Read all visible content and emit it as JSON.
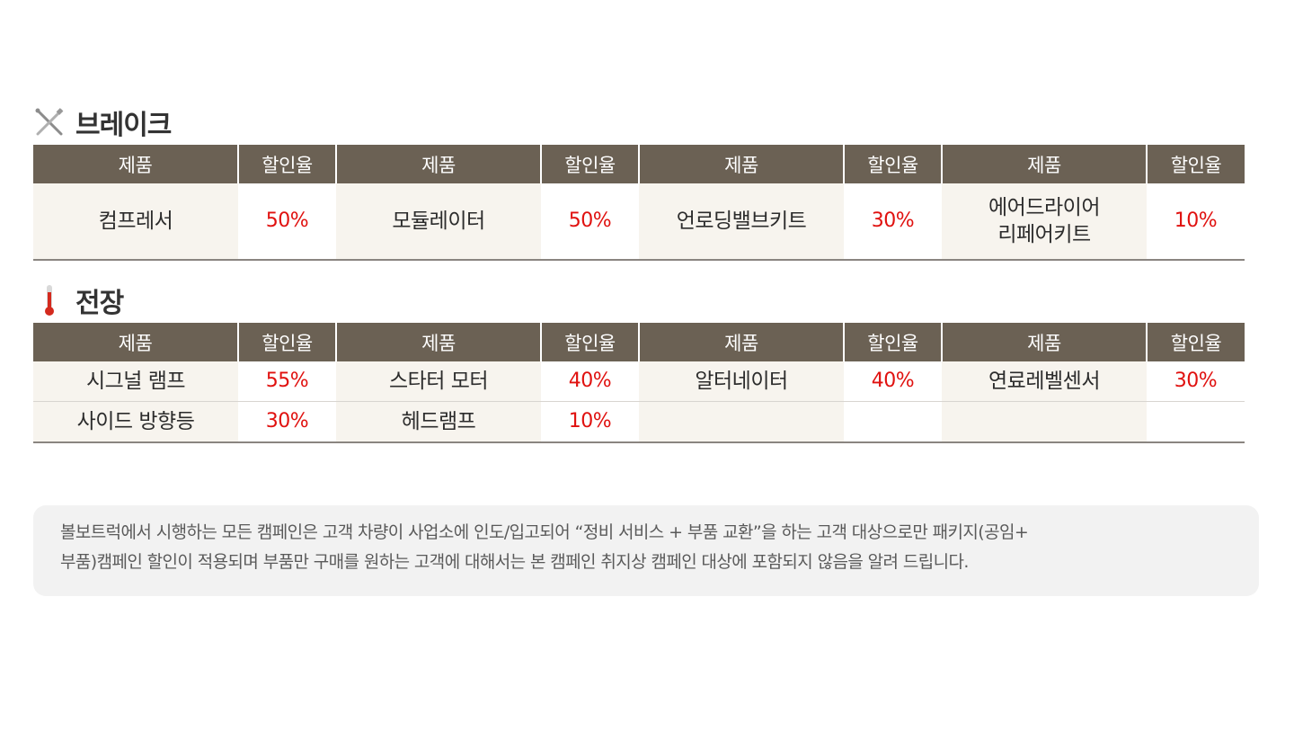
{
  "sections": [
    {
      "title": "브레이크",
      "icon": "wrench-screwdriver-icon",
      "headers": [
        "제품",
        "할인율",
        "제품",
        "할인율",
        "제품",
        "할인율",
        "제품",
        "할인율"
      ],
      "rows": [
        [
          {
            "product": "컴프레서",
            "rate": "50%"
          },
          {
            "product": "모듈레이터",
            "rate": "50%"
          },
          {
            "product": "언로딩밸브키트",
            "rate": "30%"
          },
          {
            "product": "에어드라이어\n리페어키트",
            "rate": "10%"
          }
        ]
      ]
    },
    {
      "title": "전장",
      "icon": "thermometer-icon",
      "headers": [
        "제품",
        "할인율",
        "제품",
        "할인율",
        "제품",
        "할인율",
        "제품",
        "할인율"
      ],
      "rows": [
        [
          {
            "product": "시그널 램프",
            "rate": "55%"
          },
          {
            "product": "스타터 모터",
            "rate": "40%"
          },
          {
            "product": "알터네이터",
            "rate": "40%"
          },
          {
            "product": "연료레벨센서",
            "rate": "30%"
          }
        ],
        [
          {
            "product": "사이드 방향등",
            "rate": "30%"
          },
          {
            "product": "헤드램프",
            "rate": "10%"
          },
          {
            "product": "",
            "rate": ""
          },
          {
            "product": "",
            "rate": ""
          }
        ]
      ]
    }
  ],
  "notice": "볼보트럭에서 시행하는 모든 캠페인은 고객 차량이 사업소에 인도/입고되어 “정비 서비스 + 부품 교환”을 하는 고객 대상으로만 패키지(공임+\n부품)캠페인 할인이 적용되며 부품만 구매를 원하는 고객에 대해서는 본 캠페인 취지상 캠페인 대상에 포함되지 않음을 알려 드립니다.",
  "colors": {
    "header_bg": "#6b6154",
    "product_bg": "#f7f4ee",
    "rate_text": "#e0110f",
    "notice_bg": "#f2f2f2"
  }
}
